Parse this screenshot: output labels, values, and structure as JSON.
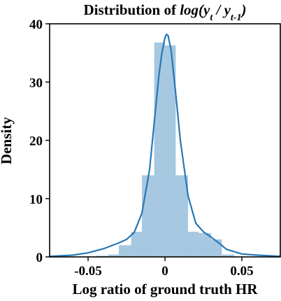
{
  "chart_data": {
    "type": "histogram",
    "title": {
      "prefix": "Distribution of ",
      "expr": "log(y",
      "sub1": "t",
      "mid": " / y",
      "sub2": "t-1",
      "suffix": ")"
    },
    "xlabel": "Log ratio of ground truth HR",
    "ylabel": "Density",
    "xlim": [
      -0.075,
      0.075
    ],
    "ylim": [
      0,
      40
    ],
    "xticks": [
      -0.05,
      0,
      0.05
    ],
    "xtick_labels": [
      "-0.05",
      "0",
      "0.05"
    ],
    "yticks": [
      0,
      10,
      20,
      30,
      40
    ],
    "ytick_labels": [
      "0",
      "10",
      "20",
      "30",
      "40"
    ],
    "bins": [
      {
        "x0": -0.045,
        "x1": -0.037,
        "density": 0.2
      },
      {
        "x0": -0.037,
        "x1": -0.03,
        "density": 0.4
      },
      {
        "x0": -0.03,
        "x1": -0.022,
        "density": 2.0
      },
      {
        "x0": -0.022,
        "x1": -0.015,
        "density": 4.3
      },
      {
        "x0": -0.015,
        "x1": -0.007,
        "density": 14.0
      },
      {
        "x0": -0.007,
        "x1": 0.0,
        "density": 36.8
      },
      {
        "x0": 0.0,
        "x1": 0.007,
        "density": 36.3
      },
      {
        "x0": 0.007,
        "x1": 0.015,
        "density": 14.0
      },
      {
        "x0": 0.015,
        "x1": 0.022,
        "density": 4.3
      },
      {
        "x0": 0.022,
        "x1": 0.03,
        "density": 4.1
      },
      {
        "x0": 0.03,
        "x1": 0.037,
        "density": 3.0
      },
      {
        "x0": 0.037,
        "x1": 0.045,
        "density": 0.4
      }
    ],
    "kde": {
      "x": [
        -0.075,
        -0.06,
        -0.05,
        -0.04,
        -0.03,
        -0.025,
        -0.02,
        -0.015,
        -0.01,
        -0.007,
        -0.004,
        -0.002,
        0.0,
        0.001,
        0.002,
        0.004,
        0.007,
        0.01,
        0.015,
        0.02,
        0.025,
        0.03,
        0.035,
        0.04,
        0.05,
        0.06,
        0.075
      ],
      "y": [
        0.1,
        0.3,
        0.7,
        1.4,
        2.4,
        3.0,
        4.2,
        7.5,
        15.0,
        23.0,
        31.0,
        35.0,
        37.6,
        38.2,
        38.0,
        35.5,
        28.0,
        20.0,
        10.5,
        5.8,
        4.3,
        3.4,
        2.4,
        1.3,
        0.5,
        0.3,
        0.1
      ]
    },
    "colors": {
      "bar": "#a6c8e1",
      "line": "#2878b5",
      "axis": "#000000"
    },
    "grid": false,
    "legend": "none"
  }
}
